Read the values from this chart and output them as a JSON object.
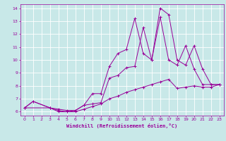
{
  "xlabel": "Windchill (Refroidissement éolien,°C)",
  "xlim": [
    -0.5,
    23.5
  ],
  "ylim": [
    5.7,
    14.3
  ],
  "xticks": [
    0,
    1,
    2,
    3,
    4,
    5,
    6,
    7,
    8,
    9,
    10,
    11,
    12,
    13,
    14,
    15,
    16,
    17,
    18,
    19,
    20,
    21,
    22,
    23
  ],
  "yticks": [
    6,
    7,
    8,
    9,
    10,
    11,
    12,
    13,
    14
  ],
  "bg_color": "#c8e8e8",
  "line_color": "#990099",
  "grid_color": "#ffffff",
  "lines": [
    {
      "x": [
        0,
        1,
        3,
        4,
        5,
        6,
        7,
        8,
        9,
        10,
        11,
        12,
        13,
        14,
        15,
        16,
        17,
        18,
        19,
        20,
        21,
        22,
        23
      ],
      "y": [
        6.3,
        6.8,
        6.3,
        6.2,
        6.1,
        6.1,
        6.5,
        7.4,
        7.4,
        9.5,
        10.5,
        10.8,
        13.2,
        10.5,
        10.0,
        14.0,
        13.5,
        10.0,
        9.6,
        11.1,
        9.3,
        8.1,
        8.1
      ]
    },
    {
      "x": [
        0,
        3,
        4,
        5,
        6,
        7,
        8,
        9,
        10,
        11,
        12,
        13,
        14,
        15,
        16,
        17,
        18,
        19,
        20,
        21,
        22,
        23
      ],
      "y": [
        6.3,
        6.3,
        6.0,
        6.0,
        6.1,
        6.5,
        6.6,
        6.7,
        8.6,
        8.8,
        9.4,
        9.5,
        12.5,
        10.0,
        13.3,
        10.0,
        9.6,
        11.1,
        9.3,
        8.1,
        8.1,
        8.1
      ]
    },
    {
      "x": [
        0,
        1,
        3,
        4,
        5,
        6,
        7,
        8,
        9,
        10,
        11,
        12,
        13,
        14,
        15,
        16,
        17,
        18,
        19,
        20,
        21,
        22,
        23
      ],
      "y": [
        6.3,
        6.8,
        6.3,
        6.1,
        6.0,
        6.0,
        6.2,
        6.4,
        6.6,
        7.0,
        7.2,
        7.5,
        7.7,
        7.9,
        8.1,
        8.3,
        8.5,
        7.8,
        7.9,
        8.0,
        7.9,
        7.9,
        8.1
      ]
    }
  ]
}
